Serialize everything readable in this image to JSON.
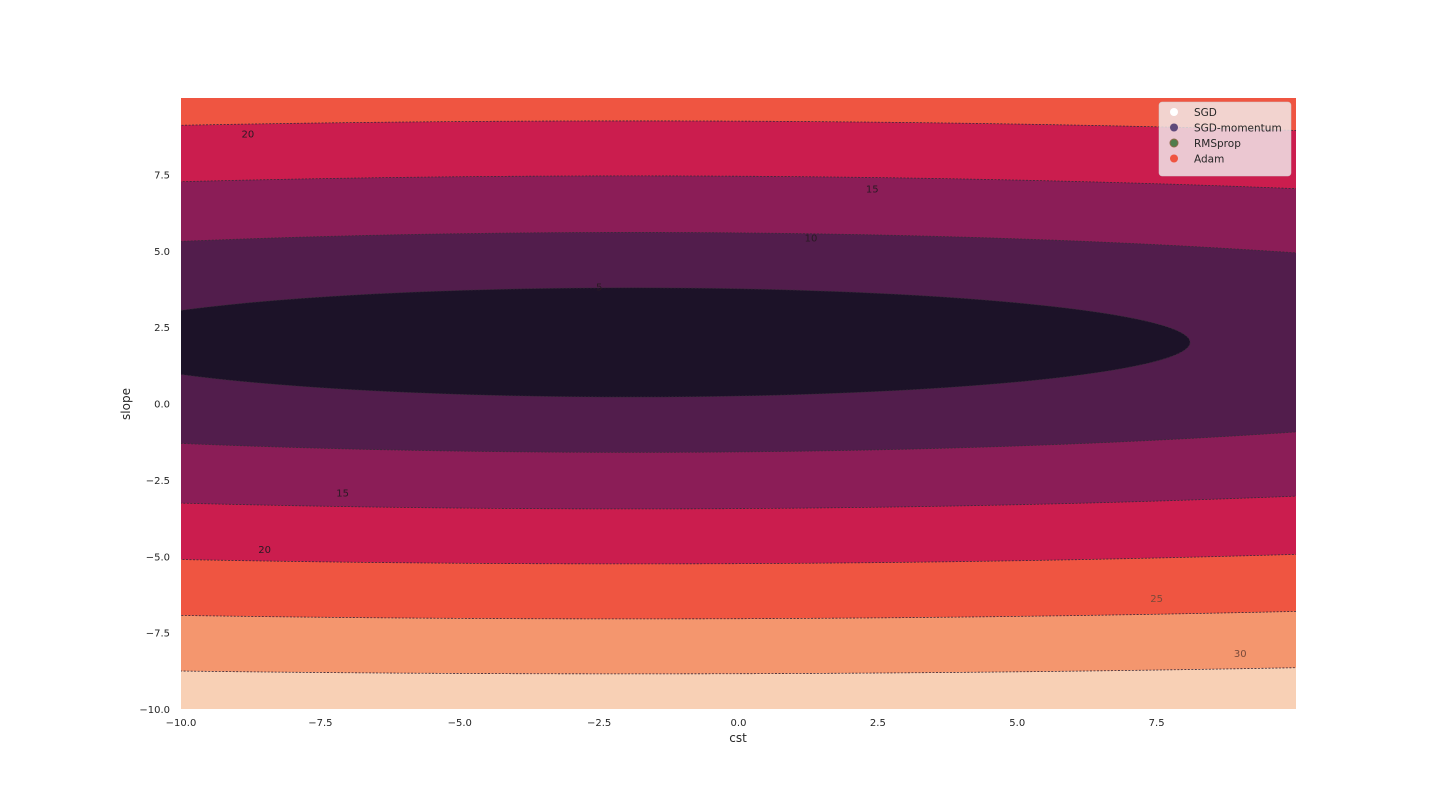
{
  "chart_data": {
    "type": "contour",
    "title": "",
    "xlabel": "cst",
    "ylabel": "slope",
    "xlim": [
      -10,
      10
    ],
    "ylim": [
      -10,
      10
    ],
    "x_ticks": [
      -10,
      -7.5,
      -5,
      -2.5,
      0,
      2.5,
      5,
      7.5
    ],
    "x_tick_labels": [
      "−10.0",
      "−7.5",
      "−5.0",
      "−2.5",
      "0.0",
      "2.5",
      "5.0",
      "7.5"
    ],
    "y_ticks": [
      -10,
      -7.5,
      -5,
      -2.5,
      0,
      2.5,
      5,
      7.5
    ],
    "y_tick_labels": [
      "−10.0",
      "−7.5",
      "−5.0",
      "−2.5",
      "0.0",
      "2.5",
      "5.0",
      "7.5"
    ],
    "minimum": {
      "cst": -1.9,
      "slope": 2.0
    },
    "contour_levels": [
      {
        "level": 5,
        "label": "5",
        "fill": "#1c1228",
        "semi_cst": 10.0,
        "semi_slope": 1.79,
        "label_at": {
          "cst": -2.5,
          "slope": 3.8
        }
      },
      {
        "level": 10,
        "label": "10",
        "fill": "#521d4c",
        "semi_cst": 20.5,
        "semi_slope": 3.6,
        "label_at": {
          "cst": 1.3,
          "slope": 5.4
        }
      },
      {
        "level": 15,
        "label": "15",
        "fill": "#8b1d57",
        "semi_cst": 31.0,
        "semi_slope": 5.45,
        "label_at": {
          "cst": -7.1,
          "slope": -2.95
        }
      },
      {
        "level": 20,
        "label": "20",
        "fill": "#cb1d4e",
        "semi_cst": 41.0,
        "semi_slope": 7.25,
        "label_at": {
          "cst": -8.5,
          "slope": -4.8
        }
      },
      {
        "level": 25,
        "label": "25",
        "fill": "#ef5541",
        "semi_cst": 51.5,
        "semi_slope": 9.05,
        "label_at": {
          "cst": 7.5,
          "slope": -6.4
        }
      },
      {
        "level": 30,
        "label": "30",
        "fill": "#f4966e",
        "semi_cst": 62.0,
        "semi_slope": 10.85,
        "label_at": {
          "cst": 9.0,
          "slope": -8.2
        }
      }
    ],
    "outer_fill": "#f8d0b5",
    "extra_labels": [
      {
        "label": "20",
        "at": {
          "cst": -8.8,
          "slope": 8.8
        }
      },
      {
        "label": "15",
        "at": {
          "cst": 2.4,
          "slope": 7.0
        }
      }
    ],
    "legend": {
      "placement": "top-right",
      "entries": [
        {
          "name": "SGD",
          "color": "#ffffff"
        },
        {
          "name": "SGD-momentum",
          "color": "#5e4a7a"
        },
        {
          "name": "RMSprop",
          "color": "#4f7d4c"
        },
        {
          "name": "Adam",
          "color": "#ef5541"
        }
      ]
    },
    "grid": false
  }
}
